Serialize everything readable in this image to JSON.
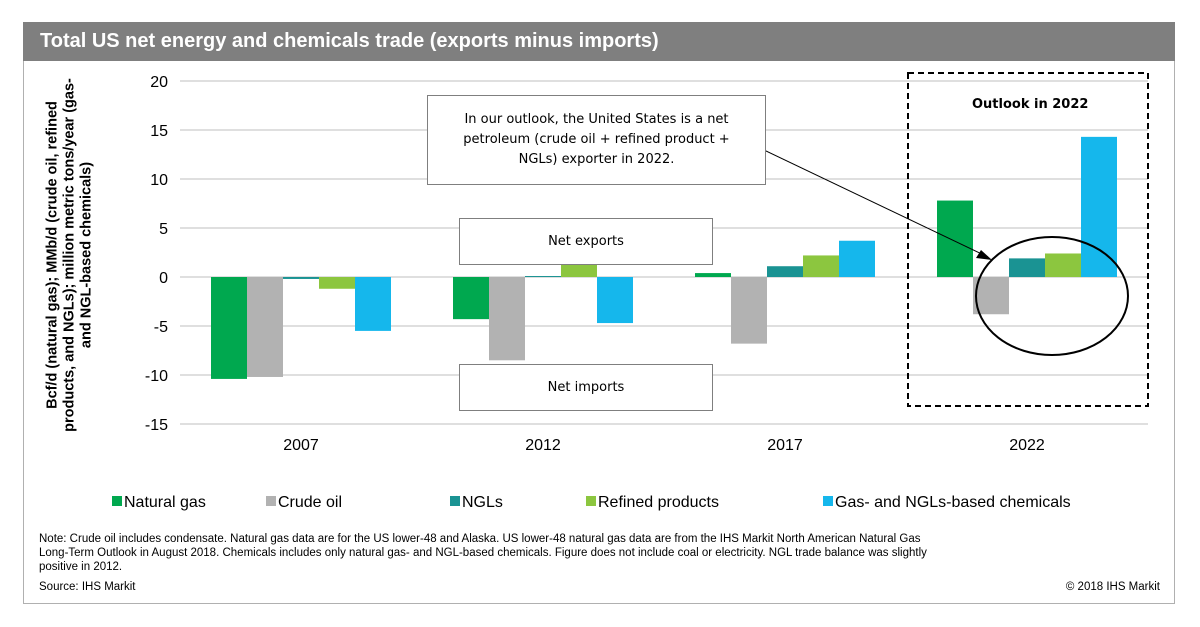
{
  "title": "Total US net energy and chemicals trade (exports minus imports)",
  "chart_data": {
    "type": "bar",
    "categories": [
      "2007",
      "2012",
      "2017",
      "2022"
    ],
    "series": [
      {
        "name": "Natural gas",
        "color": "#00a84f",
        "values": [
          -10.4,
          -4.3,
          0.4,
          7.8
        ]
      },
      {
        "name": "Crude oil",
        "color": "#b2b2b2",
        "values": [
          -10.2,
          -8.5,
          -6.8,
          -3.8
        ]
      },
      {
        "name": "NGLs",
        "color": "#1a9393",
        "values": [
          -0.2,
          0.1,
          1.1,
          1.9
        ]
      },
      {
        "name": "Refined products",
        "color": "#8cc63f",
        "values": [
          -1.2,
          1.3,
          2.2,
          2.4
        ]
      },
      {
        "name": "Gas- and NGLs-based chemicals",
        "color": "#15b7ec",
        "values": [
          -5.5,
          -4.7,
          3.7,
          14.3
        ]
      }
    ],
    "ylabel": "Bcf/d (natural gas); MMb/d (crude oil, refined products, and NGLs); million metric tons/year (gas- and NGL-based chemicals)",
    "ylim": [
      -15,
      20
    ],
    "yticks": [
      "20",
      "15",
      "10",
      "5",
      "0",
      "-5",
      "-10",
      "-15"
    ],
    "grid": true,
    "legend_position": "bottom"
  },
  "annotations": {
    "callout": "In our outlook, the United States is a net petroleum (crude oil + refined product + NGLs) exporter in 2022.",
    "net_exports": "Net exports",
    "net_imports": "Net imports",
    "outlook": "Outlook in 2022"
  },
  "note": "Note: Crude oil includes condensate. Natural gas data are for the US lower-48 and Alaska. US lower-48 natural gas data are from the IHS Markit North American Natural Gas Long-Term Outlook in August 2018. Chemicals includes only natural gas- and NGL-based chemicals. Figure does not include coal or electricity. NGL trade balance was slightly positive in 2012.",
  "source": "Source: IHS Markit",
  "copyright": "© 2018 IHS Markit"
}
